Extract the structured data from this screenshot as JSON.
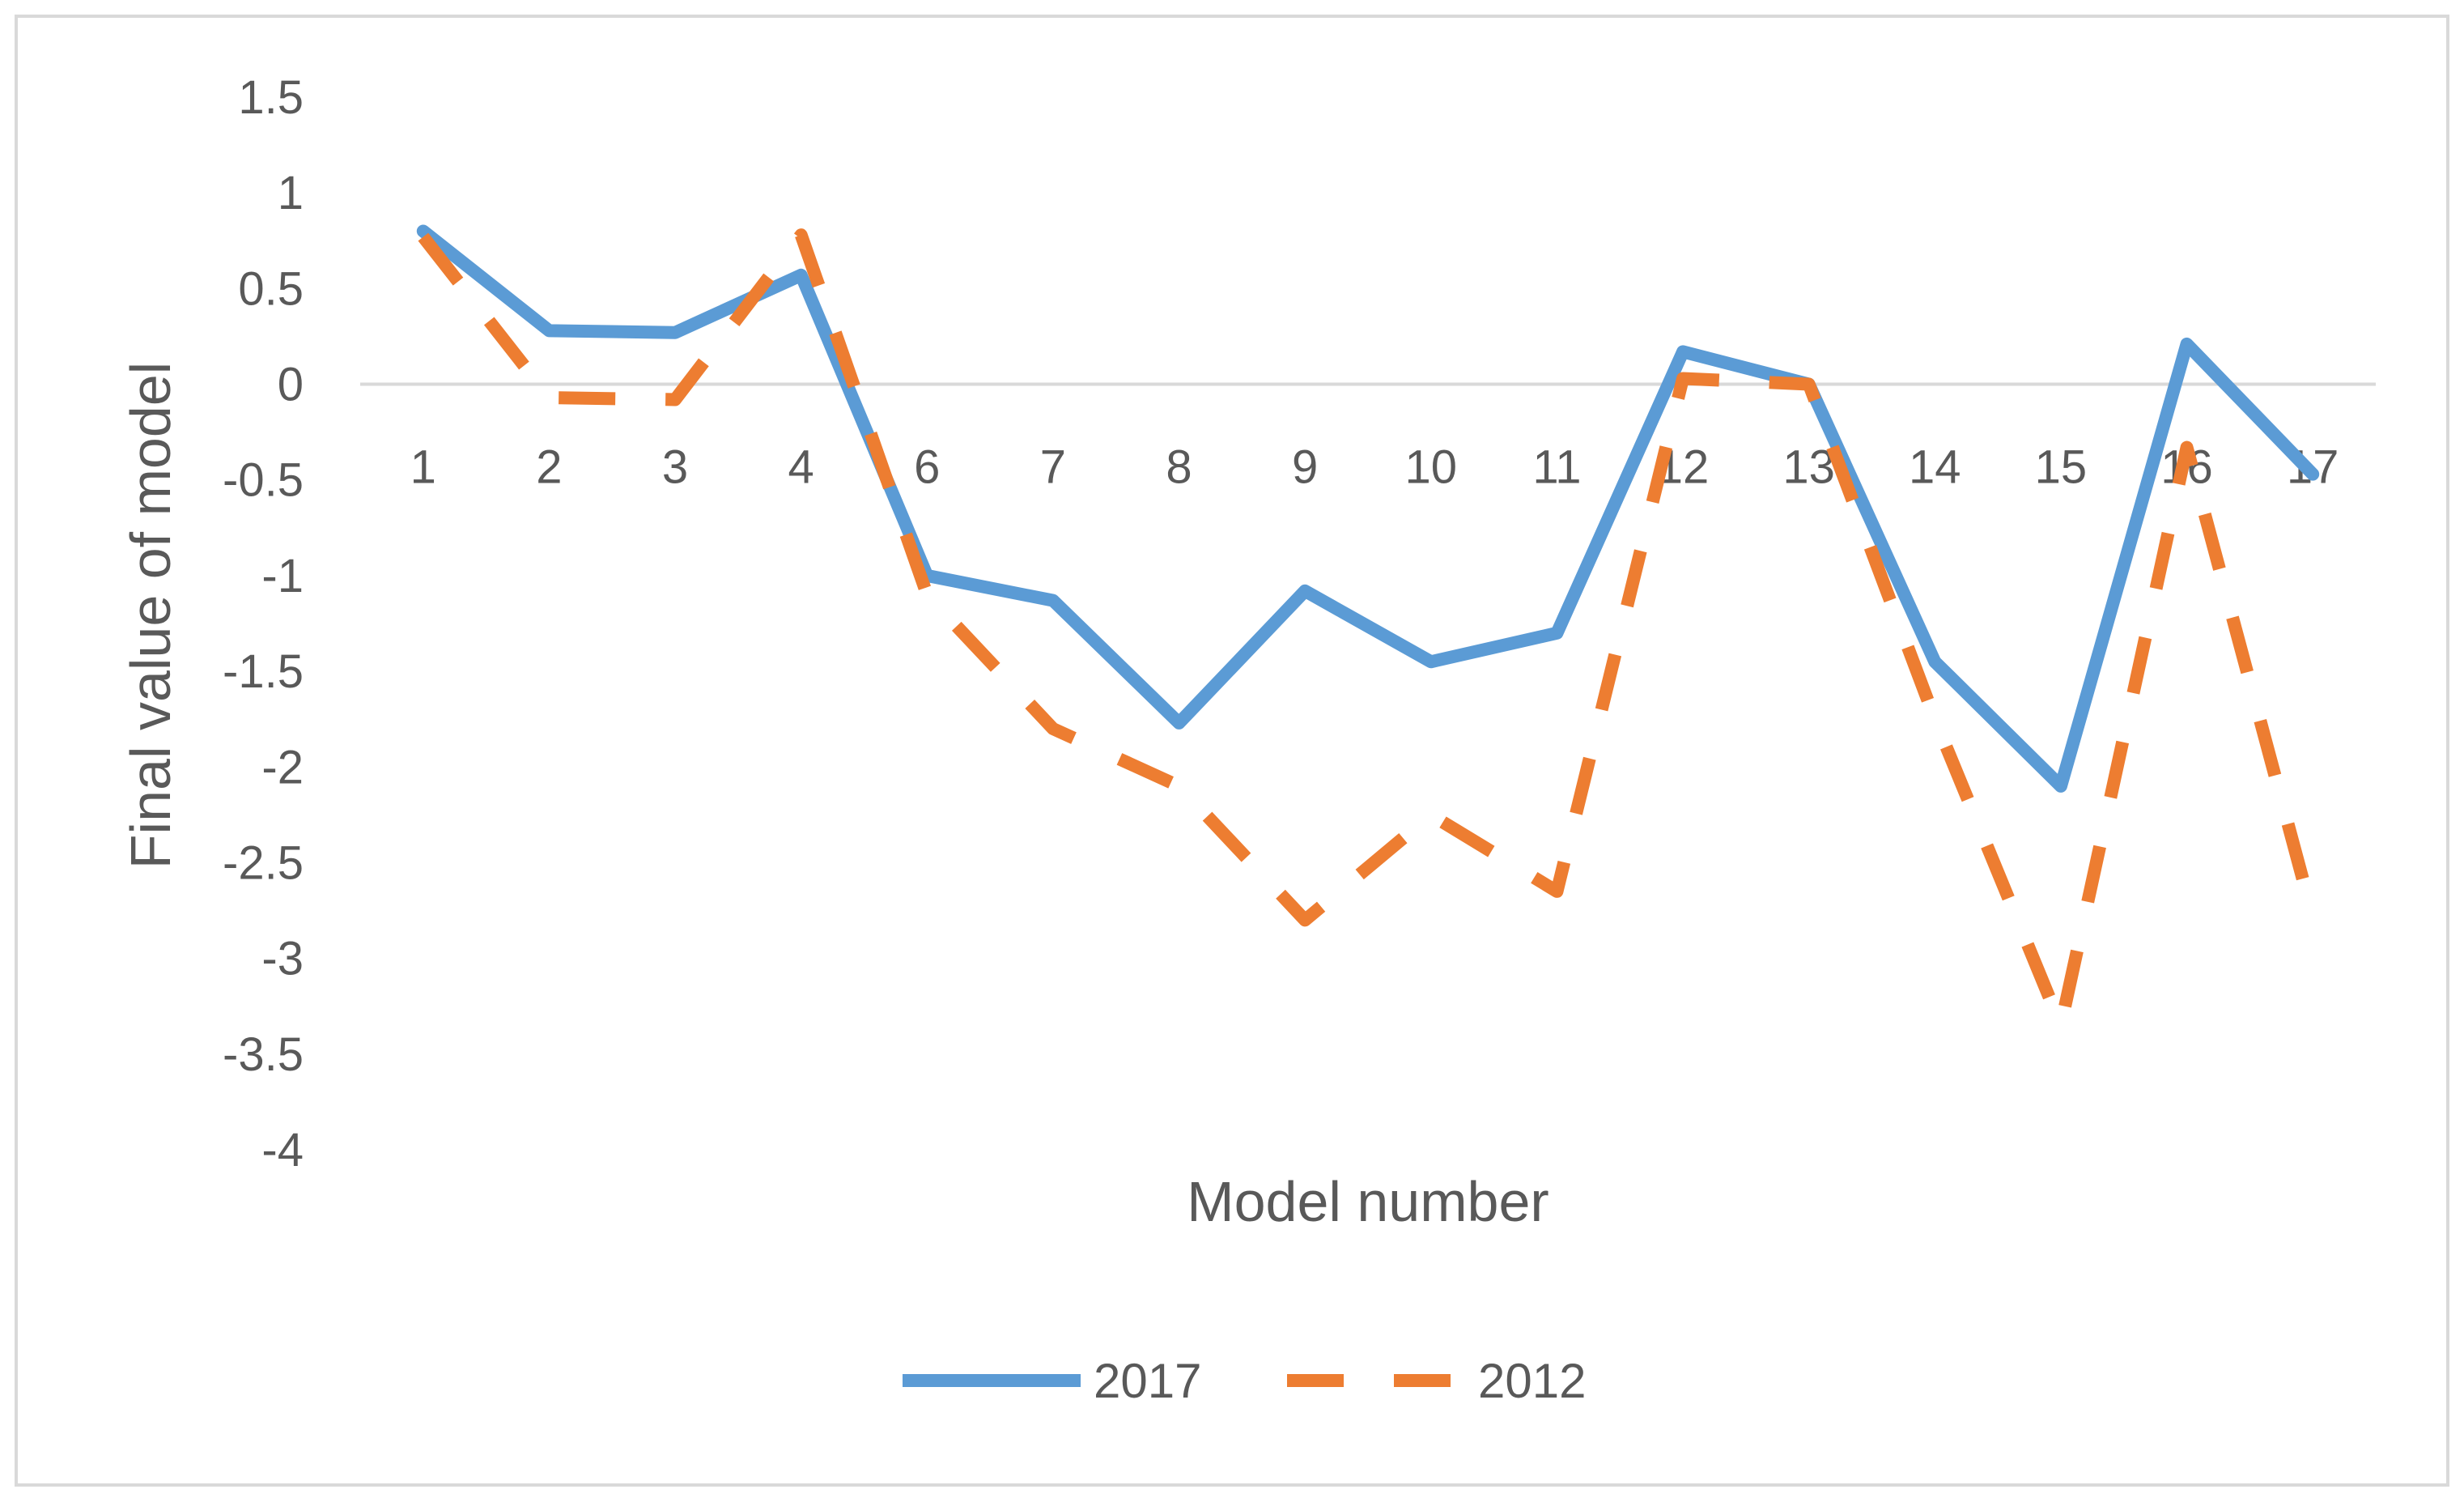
{
  "chart_data": {
    "type": "line",
    "title": "",
    "xlabel": "Model number",
    "ylabel": "Final value of model",
    "categories": [
      "1",
      "2",
      "3",
      "4",
      "6",
      "7",
      "8",
      "9",
      "10",
      "11",
      "12",
      "13",
      "14",
      "15",
      "16",
      "17"
    ],
    "ylim": [
      -4,
      1.5
    ],
    "yticks": [
      1.5,
      1,
      0.5,
      0,
      -0.5,
      -1,
      -1.5,
      -2,
      -2.5,
      -3,
      -3.5,
      -4
    ],
    "ytick_labels": [
      "1.5",
      "1",
      "0.5",
      "0",
      "-0.5",
      "-1",
      "-1.5",
      "-2",
      "-2.5",
      "-3",
      "-3.5",
      "-4"
    ],
    "series": [
      {
        "name": "2017",
        "color": "#5B9BD5",
        "dash": "solid",
        "values": [
          0.8,
          0.28,
          0.27,
          0.57,
          -1.0,
          -1.13,
          -1.77,
          -1.08,
          -1.45,
          -1.3,
          0.17,
          0.0,
          -1.45,
          -2.1,
          0.21,
          -0.47
        ]
      },
      {
        "name": "2012",
        "color": "#ED7D31",
        "dash": "dashed",
        "values": [
          0.77,
          -0.07,
          -0.08,
          0.78,
          -1.1,
          -1.8,
          -2.1,
          -2.8,
          -2.25,
          -2.65,
          0.03,
          0.0,
          -1.75,
          -3.35,
          -0.33,
          -2.78
        ]
      }
    ],
    "grid": false,
    "legend_position": "bottom"
  }
}
